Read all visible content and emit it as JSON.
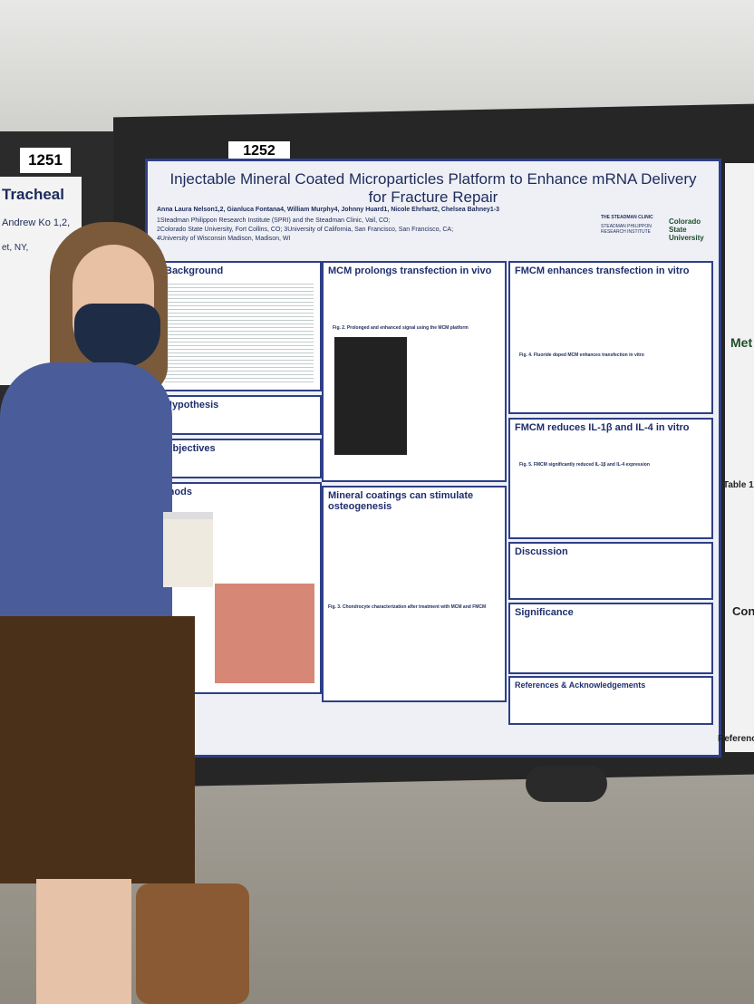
{
  "board_labels": [
    "1251",
    "1252"
  ],
  "left_poster": {
    "title": "Tracheal",
    "authors": "Andrew Ko 1,2,",
    "affiliation": "et, NY,"
  },
  "poster": {
    "title": "Injectable Mineral Coated Microparticles Platform to Enhance mRNA Delivery for Fracture Repair",
    "authors": "Anna Laura Nelson1,2, Gianluca Fontana4, William Murphy4, Johnny Huard1, Nicole Ehrhart2, Chelsea Bahney1-3",
    "affiliations": [
      "1Steadman Philippon Research Institute (SPRI) and the Steadman Clinic, Vail, CO;",
      "2Colorado State University, Fort Collins, CO; 3University of California, San Francisco, San Francisco, CA;",
      "4University of Wisconsin Madison, Madison, WI"
    ],
    "logos": [
      "THE STEADMAN CLINIC",
      "STEADMAN PHILIPPON RESEARCH INSTITUTE",
      "Colorado State University"
    ],
    "left_sections": [
      "Background",
      "Hypothesis",
      "Objectives",
      "thods"
    ],
    "middle_sections": [
      "MCM prolongs transfection in vivo",
      "Mineral coatings can stimulate osteogenesis"
    ],
    "right_sections": [
      "FMCM enhances transfection in vitro",
      "FMCM reduces IL-1β and IL-4 in vitro",
      "Discussion",
      "Significance",
      "References & Acknowledgements"
    ],
    "figure_captions": [
      "Fig. 2. Prolonged and enhanced signal using the MCM platform",
      "Fig. 3. Chondrocyte characterization after treatment with MCM and FMCM",
      "Fig. 4. Fluoride doped MCM enhances transfection in vitro",
      "Fig. 5. FMCM significantly reduced IL-1β and IL-4 expression"
    ]
  },
  "right_poster": {
    "fragments": [
      "Met",
      "Table 1",
      "Conclus",
      "References"
    ]
  }
}
